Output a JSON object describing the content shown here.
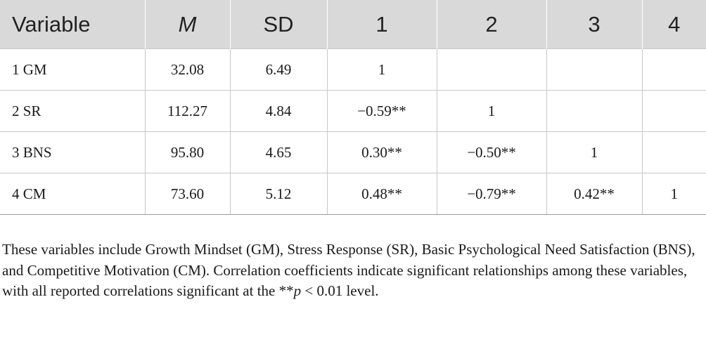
{
  "table": {
    "headers": [
      "Variable",
      "M",
      "SD",
      "1",
      "2",
      "3",
      "4"
    ],
    "rows": [
      [
        "1 GM",
        "32.08",
        "6.49",
        "1",
        "",
        "",
        ""
      ],
      [
        "2 SR",
        "112.27",
        "4.84",
        "−0.59**",
        "1",
        "",
        ""
      ],
      [
        "3 BNS",
        "95.80",
        "4.65",
        "0.30**",
        "−0.50**",
        "1",
        ""
      ],
      [
        "4 CM",
        "73.60",
        "5.12",
        "0.48**",
        "−0.79**",
        "0.42**",
        "1"
      ]
    ]
  },
  "note": {
    "text_before": "These variables include Growth Mindset (GM), Stress Response (SR), Basic Psychological Need Satisfaction (BNS), and Competitive Motivation (CM). Correlation coefficients indicate significant relationships among these variables, with all reported correlations significant at the **",
    "p_symbol": "p",
    "text_after": " < 0.01 level."
  },
  "colors": {
    "header_bg": "#d9d9d9",
    "grid_line": "#c8c8c8",
    "text": "#1a1a1a"
  }
}
